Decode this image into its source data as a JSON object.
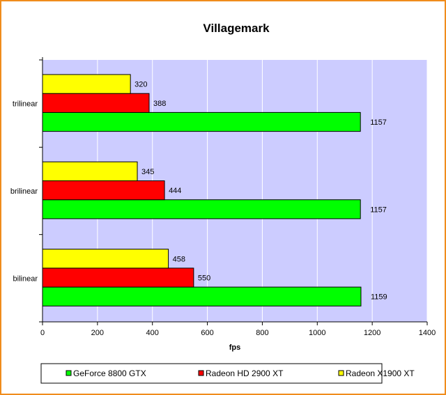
{
  "chart_data": {
    "type": "bar",
    "orientation": "horizontal",
    "title": "Villagemark",
    "xlabel": "fps",
    "ylabel": "",
    "xlim": [
      0,
      1400
    ],
    "xticks": [
      0,
      200,
      400,
      600,
      800,
      1000,
      1200,
      1400
    ],
    "grid": true,
    "legend_placement": "bottom",
    "plot_background": "#ccccff",
    "categories": [
      "trilinear",
      "brilinear",
      "bilinear"
    ],
    "series": [
      {
        "name": "GeForce 8800 GTX",
        "color": "#00ff00",
        "values": [
          1157,
          1157,
          1159
        ]
      },
      {
        "name": "Radeon HD 2900 XT",
        "color": "#ff0000",
        "values": [
          388,
          444,
          550
        ]
      },
      {
        "name": "Radeon X1900 XT",
        "color": "#ffff00",
        "values": [
          320,
          345,
          458
        ]
      }
    ]
  }
}
